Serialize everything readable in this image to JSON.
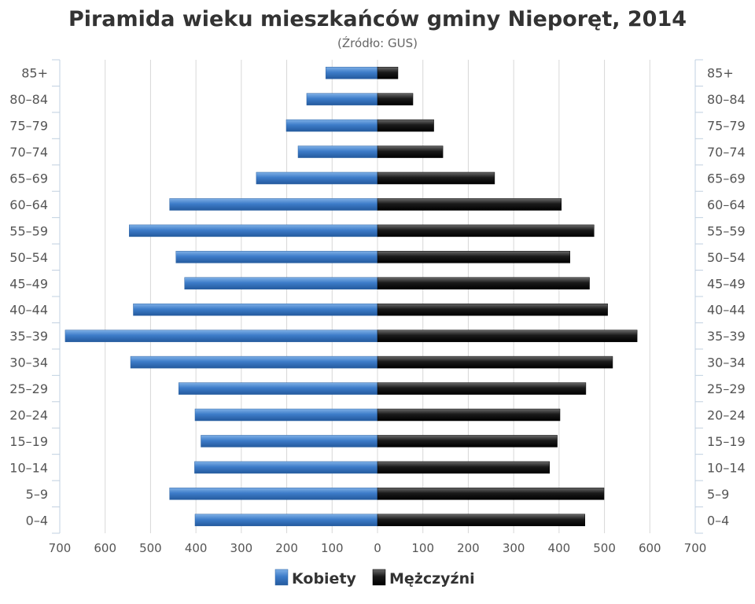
{
  "chart_data": {
    "type": "bar",
    "orientation": "horizontal-pyramid",
    "title": "Piramida wieku mieszkańców gminy Nieporęt, 2014",
    "subtitle": "(Źródło: GUS)",
    "categories": [
      "0–4",
      "5–9",
      "10–14",
      "15–19",
      "20–24",
      "25–29",
      "30–34",
      "35–39",
      "40–44",
      "45–49",
      "50–54",
      "55–59",
      "60–64",
      "65–69",
      "70–74",
      "75–79",
      "80–84",
      "85+"
    ],
    "series": [
      {
        "name": "Kobiety",
        "color": "#3d7cc9",
        "values": [
          402,
          458,
          403,
          389,
          402,
          438,
          544,
          688,
          538,
          425,
          444,
          547,
          458,
          267,
          175,
          201,
          156,
          114
        ]
      },
      {
        "name": "Mężczyźni",
        "color": "#1a1a1a",
        "values": [
          457,
          499,
          379,
          396,
          402,
          459,
          518,
          572,
          507,
          467,
          424,
          477,
          405,
          258,
          144,
          124,
          78,
          45
        ]
      }
    ],
    "xlim": [
      -700,
      700
    ],
    "x_ticks": [
      -700,
      -600,
      -500,
      -400,
      -300,
      -200,
      -100,
      0,
      100,
      200,
      300,
      400,
      500,
      600,
      700
    ],
    "x_tick_labels": [
      "700",
      "600",
      "500",
      "400",
      "300",
      "200",
      "100",
      "0",
      "100",
      "200",
      "300",
      "400",
      "500",
      "600",
      "700"
    ],
    "grid": true,
    "legend_position": "bottom-center"
  }
}
